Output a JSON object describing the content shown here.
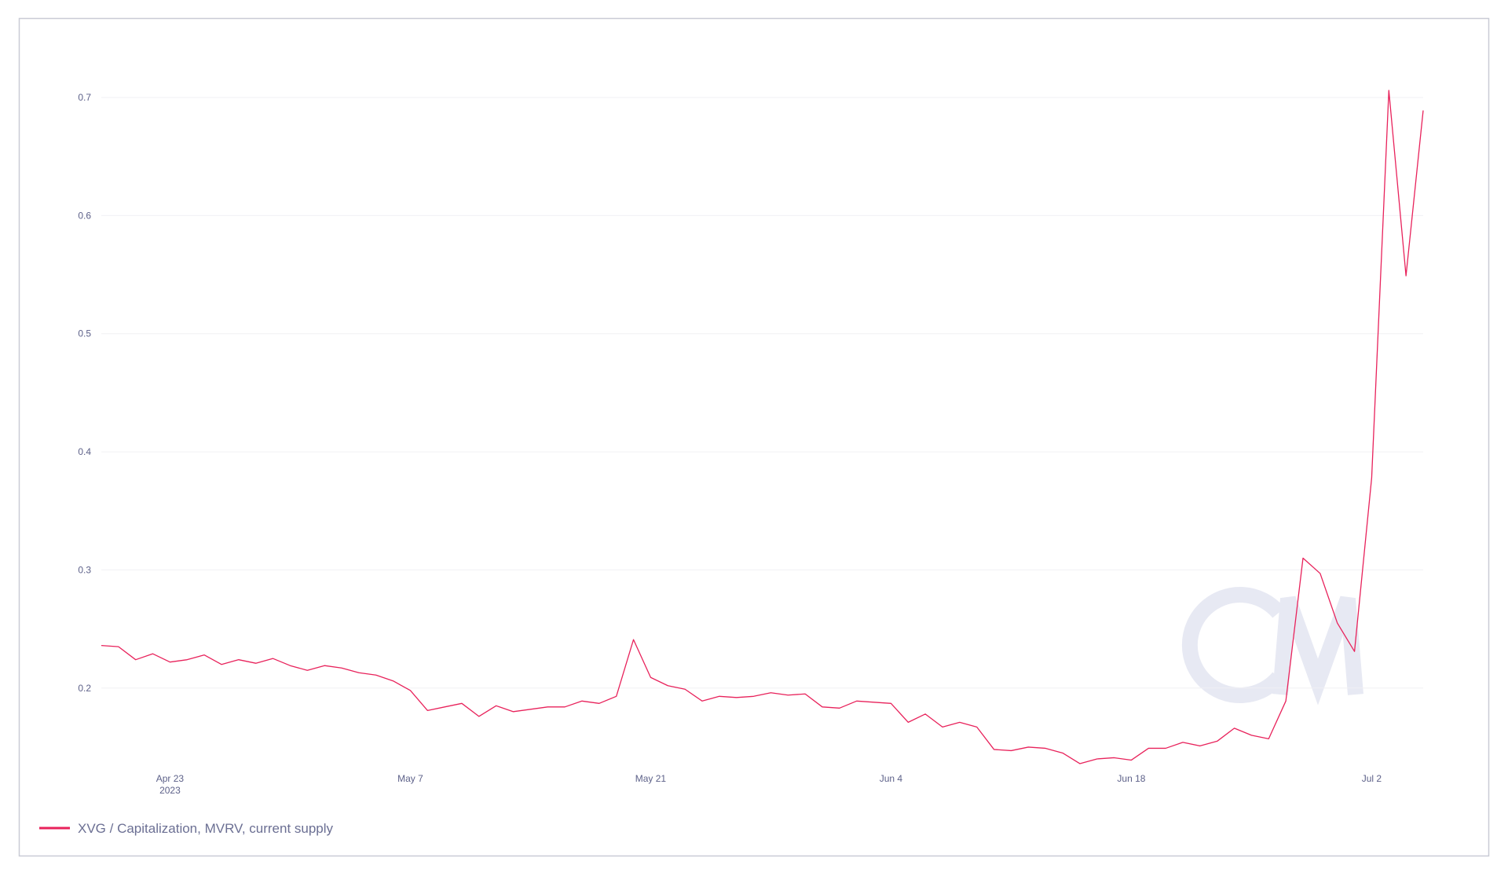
{
  "chart_data": {
    "type": "line",
    "x": [
      "2023-04-19",
      "2023-04-20",
      "2023-04-21",
      "2023-04-22",
      "2023-04-23",
      "2023-04-24",
      "2023-04-25",
      "2023-04-26",
      "2023-04-27",
      "2023-04-28",
      "2023-04-29",
      "2023-04-30",
      "2023-05-01",
      "2023-05-02",
      "2023-05-03",
      "2023-05-04",
      "2023-05-05",
      "2023-05-06",
      "2023-05-07",
      "2023-05-08",
      "2023-05-09",
      "2023-05-10",
      "2023-05-11",
      "2023-05-12",
      "2023-05-13",
      "2023-05-14",
      "2023-05-15",
      "2023-05-16",
      "2023-05-17",
      "2023-05-18",
      "2023-05-19",
      "2023-05-20",
      "2023-05-21",
      "2023-05-22",
      "2023-05-23",
      "2023-05-24",
      "2023-05-25",
      "2023-05-26",
      "2023-05-27",
      "2023-05-28",
      "2023-05-29",
      "2023-05-30",
      "2023-05-31",
      "2023-06-01",
      "2023-06-02",
      "2023-06-03",
      "2023-06-04",
      "2023-06-05",
      "2023-06-06",
      "2023-06-07",
      "2023-06-08",
      "2023-06-09",
      "2023-06-10",
      "2023-06-11",
      "2023-06-12",
      "2023-06-13",
      "2023-06-14",
      "2023-06-15",
      "2023-06-16",
      "2023-06-17",
      "2023-06-18",
      "2023-06-19",
      "2023-06-20",
      "2023-06-21",
      "2023-06-22",
      "2023-06-23",
      "2023-06-24",
      "2023-06-25",
      "2023-06-26",
      "2023-06-27",
      "2023-06-28",
      "2023-06-29",
      "2023-06-30",
      "2023-07-01",
      "2023-07-02",
      "2023-07-03",
      "2023-07-04",
      "2023-07-05"
    ],
    "series": [
      {
        "name": "XVG / Capitalization, MVRV, current supply",
        "color": "#e8225b",
        "values": [
          0.236,
          0.235,
          0.224,
          0.229,
          0.222,
          0.224,
          0.228,
          0.22,
          0.224,
          0.221,
          0.225,
          0.219,
          0.215,
          0.219,
          0.217,
          0.213,
          0.211,
          0.206,
          0.198,
          0.181,
          0.184,
          0.187,
          0.176,
          0.185,
          0.18,
          0.182,
          0.184,
          0.184,
          0.189,
          0.187,
          0.193,
          0.241,
          0.209,
          0.202,
          0.199,
          0.189,
          0.193,
          0.192,
          0.193,
          0.196,
          0.194,
          0.195,
          0.184,
          0.183,
          0.189,
          0.188,
          0.187,
          0.171,
          0.178,
          0.167,
          0.171,
          0.167,
          0.148,
          0.147,
          0.15,
          0.149,
          0.145,
          0.136,
          0.14,
          0.141,
          0.139,
          0.149,
          0.149,
          0.154,
          0.151,
          0.155,
          0.166,
          0.16,
          0.157,
          0.189,
          0.31,
          0.297,
          0.255,
          0.231,
          0.378,
          0.706,
          0.549,
          0.689
        ]
      }
    ],
    "xlim": [
      "2023-04-19",
      "2023-07-05"
    ],
    "xticks": [
      {
        "value": "2023-04-23",
        "label": "Apr 23",
        "sublabel": "2023"
      },
      {
        "value": "2023-05-07",
        "label": "May 7"
      },
      {
        "value": "2023-05-21",
        "label": "May 21"
      },
      {
        "value": "2023-06-04",
        "label": "Jun 4"
      },
      {
        "value": "2023-06-18",
        "label": "Jun 18"
      },
      {
        "value": "2023-07-02",
        "label": "Jul 2"
      }
    ],
    "ylim": [
      0.13,
      0.72
    ],
    "yticks": [
      0.2,
      0.3,
      0.4,
      0.5,
      0.6,
      0.7
    ],
    "grid": true,
    "legend": "bottom-left"
  }
}
